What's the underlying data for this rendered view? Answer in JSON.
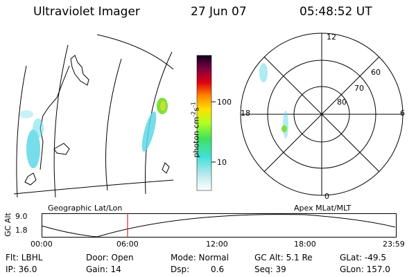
{
  "header": {
    "title": "Ultraviolet Imager",
    "date": "27 Jun 07",
    "time": "05:48:52 UT"
  },
  "colorbar": {
    "label": "photon cm^-2 s^-1",
    "ticks": [
      "100",
      "10"
    ]
  },
  "polar_plot": {
    "mlt_labels": {
      "top": "12",
      "left": "18",
      "right": "6",
      "bottom": "0"
    },
    "lat_labels": [
      "60",
      "70",
      "80"
    ]
  },
  "projection_labels": {
    "left": "Geographic Lat/Lon",
    "right": "Apex MLat/MLT"
  },
  "timeline": {
    "ylabel": "GC Alt",
    "ymax": "9.0",
    "ymin": "1.8",
    "xticks": [
      "00:00",
      "06:00",
      "12:00",
      "18:00",
      "23:59"
    ],
    "current_time_fraction": 0.2422
  },
  "info": {
    "flt": "Flt: LBHL",
    "ip": "IP: 36.0",
    "door": "Door: Open",
    "gain": "Gain: 14",
    "mode": "Mode: Normal",
    "dsp_label": "Dsp:",
    "dsp_value": "0.6",
    "gcalt": "GC Alt: 5.1 Re",
    "seq": "Seq: 39",
    "glat": "GLat: -49.5",
    "glon": "GLon: 157.0"
  },
  "colors": {
    "emission_cyan": "#5fd8e8",
    "emission_green": "#7ee03a",
    "time_marker": "#cc0000"
  }
}
